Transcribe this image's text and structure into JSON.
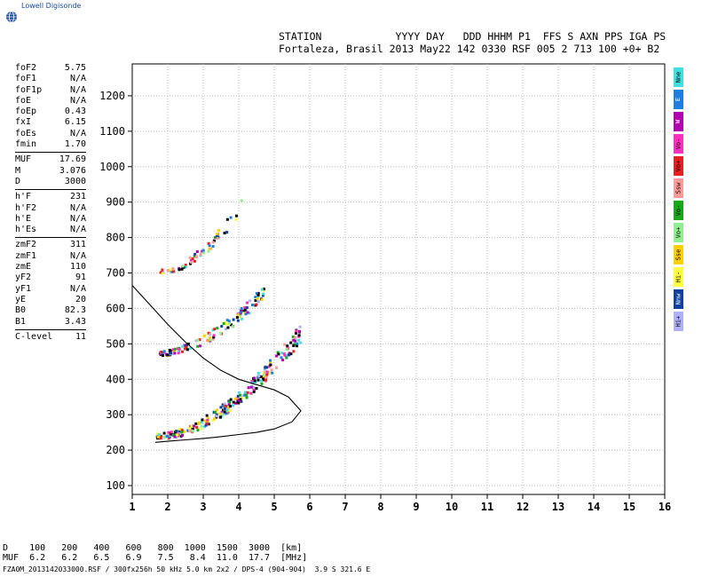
{
  "brand": "Lowell Digisonde",
  "header": {
    "line1": "STATION            YYYY DAY   DDD HHHM P1  FFS S AXN PPS IGA PS",
    "line2": "Fortaleza, Brasil 2013 May22 142 0330 RSF 005 2 713 100 +0+ B2"
  },
  "params": [
    {
      "label": "foF2",
      "value": "5.75"
    },
    {
      "label": "foF1",
      "value": "N/A"
    },
    {
      "label": "foF1p",
      "value": "N/A"
    },
    {
      "label": "foE",
      "value": "N/A"
    },
    {
      "label": "foEp",
      "value": "0.43"
    },
    {
      "label": "fxI",
      "value": "6.15"
    },
    {
      "label": "foEs",
      "value": "N/A"
    },
    {
      "label": "fmin",
      "value": "1.70"
    },
    {
      "sep": true
    },
    {
      "label": "MUF",
      "value": "17.69"
    },
    {
      "label": "M",
      "value": "3.076"
    },
    {
      "label": "D",
      "value": "3000"
    },
    {
      "sep": true
    },
    {
      "label": "h'F",
      "value": "231"
    },
    {
      "label": "h'F2",
      "value": "N/A"
    },
    {
      "label": "h'E",
      "value": "N/A"
    },
    {
      "label": "h'Es",
      "value": "N/A"
    },
    {
      "sep": true
    },
    {
      "label": "zmF2",
      "value": "311"
    },
    {
      "label": "zmF1",
      "value": "N/A"
    },
    {
      "label": "zmE",
      "value": "110"
    },
    {
      "label": "yF2",
      "value": "91"
    },
    {
      "label": "yF1",
      "value": "N/A"
    },
    {
      "label": "yE",
      "value": "20"
    },
    {
      "label": "B0",
      "value": "82.3"
    },
    {
      "label": "B1",
      "value": "3.43"
    },
    {
      "sep": true
    },
    {
      "label": "C-level",
      "value": "11"
    }
  ],
  "legend": [
    {
      "label": "Nne",
      "color": "#40e0e0"
    },
    {
      "label": "E",
      "color": "#1e7ee0"
    },
    {
      "label": "W",
      "color": "#b000b0"
    },
    {
      "label": "Vo-",
      "color": "#ff30c0"
    },
    {
      "label": "Vo+",
      "color": "#e82020"
    },
    {
      "label": "Ssw",
      "color": "#ff9a9a"
    },
    {
      "label": "Vo-",
      "color": "#18a818"
    },
    {
      "label": "Vo+",
      "color": "#90f090"
    },
    {
      "label": "Sse",
      "color": "#ffd000"
    },
    {
      "label": "Hi-",
      "color": "#ffff40"
    },
    {
      "label": "Nnw",
      "color": "#1040a0"
    },
    {
      "label": "Hi+",
      "color": "#b0b0ff"
    }
  ],
  "bottom": {
    "line1": "D    100   200   400   600   800  1000  1500  3000  [km]",
    "line2": "MUF  6.2   6.2   6.5   6.9   7.5   8.4  11.0  17.7  [MHz]"
  },
  "footer": "FZA0M_2013142033000.RSF / 300fx256h 50 kHz 5.0 km 2x2 / DPS-4 (904-904)  3.9 S 321.6 E",
  "chart_data": {
    "type": "scatter",
    "title": "",
    "xlabel": "",
    "ylabel": "",
    "xlim": [
      1,
      16
    ],
    "ylim": [
      75,
      1290
    ],
    "x_ticks": [
      1,
      2,
      3,
      4,
      5,
      6,
      7,
      8,
      9,
      10,
      11,
      12,
      13,
      14,
      15,
      16
    ],
    "y_ticks": [
      100,
      200,
      300,
      400,
      500,
      600,
      700,
      800,
      900,
      1000,
      1100,
      1200
    ],
    "grid": true,
    "traces": [
      {
        "name": "F trace",
        "f_start": 1.7,
        "f_end": 5.75,
        "h_start": 235,
        "h_end": 520,
        "spread": 40,
        "n": 260
      },
      {
        "name": "2F echo",
        "f_start": 1.75,
        "f_end": 4.75,
        "h_start": 470,
        "h_end": 640,
        "spread": 30,
        "n": 130
      },
      {
        "name": "3F echo",
        "f_start": 1.8,
        "f_end": 4.1,
        "h_start": 700,
        "h_end": 880,
        "spread": 30,
        "n": 60
      }
    ],
    "profile_curve": [
      [
        1.0,
        665
      ],
      [
        1.5,
        610
      ],
      [
        2.0,
        555
      ],
      [
        2.5,
        505
      ],
      [
        3.0,
        460
      ],
      [
        3.5,
        425
      ],
      [
        4.0,
        400
      ],
      [
        4.5,
        385
      ],
      [
        5.0,
        370
      ],
      [
        5.4,
        350
      ],
      [
        5.75,
        311
      ],
      [
        5.5,
        280
      ],
      [
        5.0,
        260
      ],
      [
        4.5,
        250
      ],
      [
        4.0,
        244
      ],
      [
        3.5,
        238
      ],
      [
        3.0,
        233
      ],
      [
        2.5,
        229
      ],
      [
        2.0,
        225
      ],
      [
        1.65,
        222
      ]
    ]
  }
}
